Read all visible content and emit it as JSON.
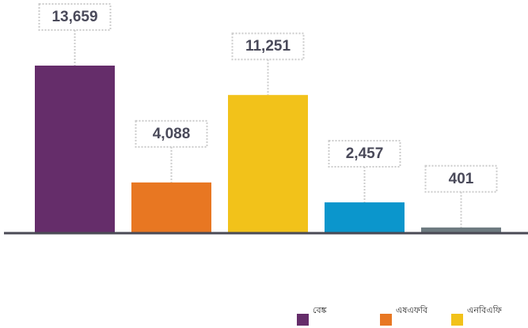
{
  "chart_data": {
    "type": "bar",
    "categories": [
      "বেঙ্ক",
      "এষএফবি",
      "এনবিএফি",
      null,
      null
    ],
    "values": [
      13659,
      4088,
      11251,
      2457,
      401
    ],
    "value_labels": [
      "13,659",
      "4,088",
      "11,251",
      "2,457",
      "401"
    ],
    "colors": [
      "#652d6a",
      "#e87722",
      "#f2c21a",
      "#0b96cc",
      "#6d7a80"
    ]
  }
}
